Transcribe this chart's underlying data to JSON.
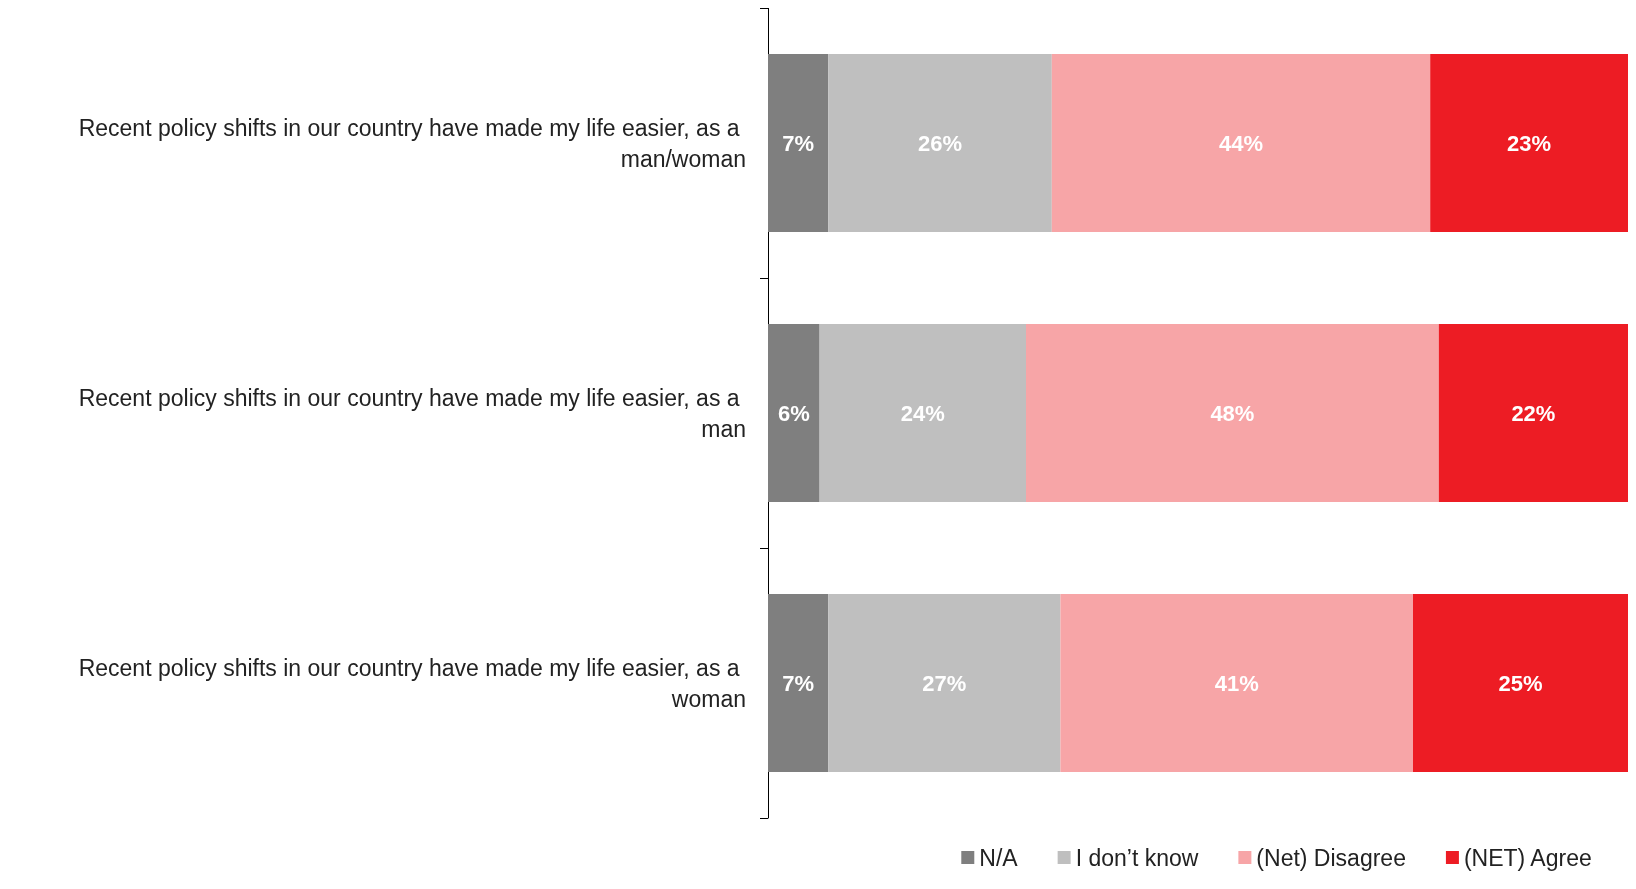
{
  "chart_data": {
    "type": "bar",
    "orientation": "horizontal",
    "stacked": true,
    "legend": "bottom right",
    "grid": false,
    "categories": [
      "Recent policy shifts in our country have made my life easier, as a man/woman",
      "Recent policy shifts in our country have made my life easier, as a man",
      "Recent policy shifts in our country have made my life easier, as a woman"
    ],
    "series": [
      {
        "name": "N/A",
        "color": "#7f7f7f",
        "values": [
          7,
          6,
          7
        ],
        "value_labels": [
          "7%",
          "6%",
          "7%"
        ]
      },
      {
        "name": "I don’t know",
        "color": "#bfbfbf",
        "values": [
          26,
          24,
          27
        ],
        "value_labels": [
          "26%",
          "24%",
          "27%"
        ]
      },
      {
        "name": "(Net) Disagree",
        "color": "#f7a5a7",
        "values": [
          44,
          48,
          41
        ],
        "value_labels": [
          "44%",
          "48%",
          "41%"
        ]
      },
      {
        "name": "(NET) Agree",
        "color": "#ed1c24",
        "values": [
          23,
          22,
          25
        ],
        "value_labels": [
          "23%",
          "22%",
          "25%"
        ]
      }
    ]
  }
}
